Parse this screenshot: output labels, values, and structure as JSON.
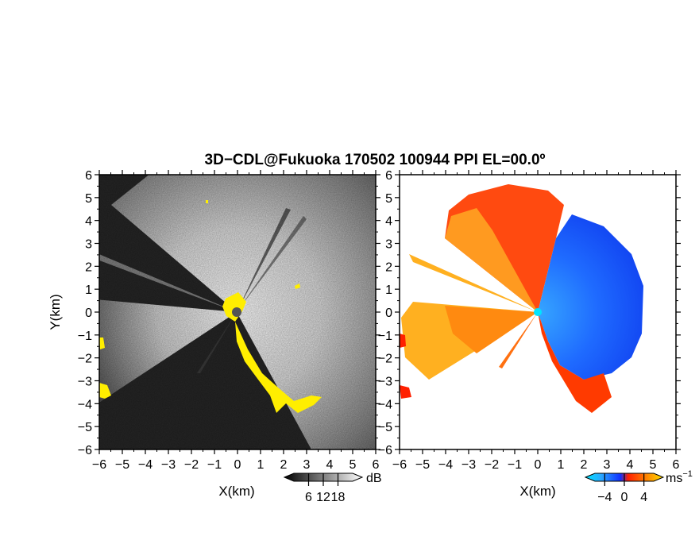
{
  "title": "3D−CDL@Fukuoka 170502 100944 PPI EL=00.0º",
  "chart_data": [
    {
      "type": "heatmap",
      "panel": "reflectivity",
      "xlabel": "X(km)",
      "ylabel": "Y(km)",
      "xlim": [
        -6,
        6
      ],
      "ylim": [
        -6,
        6
      ],
      "xticks": [
        -6,
        -5,
        -4,
        -3,
        -2,
        -1,
        0,
        1,
        2,
        3,
        4,
        5,
        6
      ],
      "yticks": [
        -6,
        -5,
        -4,
        -3,
        -2,
        -1,
        0,
        1,
        2,
        3,
        4,
        5,
        6
      ],
      "tick_labels": [
        "−6",
        "−5",
        "−4",
        "−3",
        "−2",
        "−1",
        "0",
        "1",
        "2",
        "3",
        "4",
        "5",
        "6"
      ],
      "colorbar": {
        "unit": "dB",
        "ticks": [
          6,
          12,
          18
        ],
        "tick_labels": [
          "6",
          "12",
          "18"
        ],
        "range": [
          0,
          24
        ],
        "colormap": "grayscale"
      },
      "highlight_color": "#ffee00",
      "radar_center": [
        0,
        0
      ]
    },
    {
      "type": "heatmap",
      "panel": "doppler-velocity",
      "xlabel": "X(km)",
      "xlim": [
        -6,
        6
      ],
      "ylim": [
        -6,
        6
      ],
      "xticks": [
        -6,
        -5,
        -4,
        -3,
        -2,
        -1,
        0,
        1,
        2,
        3,
        4,
        5,
        6
      ],
      "yticks": [
        -6,
        -5,
        -4,
        -3,
        -2,
        -1,
        0,
        1,
        2,
        3,
        4,
        5,
        6
      ],
      "tick_labels": [
        "−6",
        "−5",
        "−4",
        "−3",
        "−2",
        "−1",
        "0",
        "1",
        "2",
        "3",
        "4",
        "5",
        "6"
      ],
      "colorbar": {
        "unit": "ms",
        "unit_superscript": "−1",
        "ticks": [
          -4,
          0,
          4
        ],
        "tick_labels": [
          "−4",
          "0",
          "4"
        ],
        "range": [
          -6,
          6
        ],
        "colormap": "cyan-blue-red-yellow"
      },
      "colors": {
        "approaching": "#1e5cff",
        "receding": "#ff3300",
        "center": "#00e5ff"
      },
      "radar_center": [
        0,
        0
      ]
    }
  ]
}
